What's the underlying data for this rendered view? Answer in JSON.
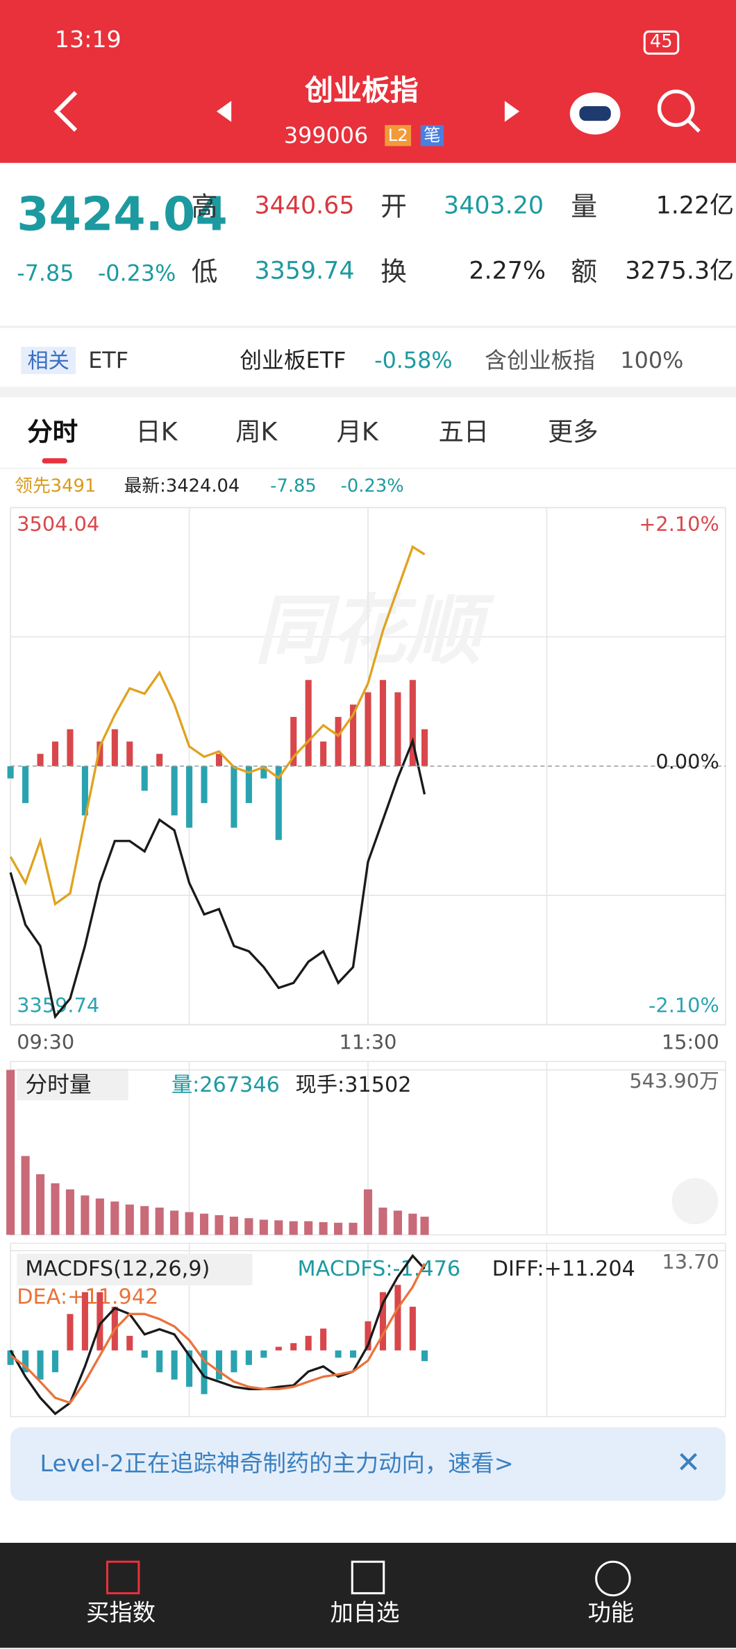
{
  "status_bar": {
    "time": "13:19",
    "battery": "45"
  },
  "header": {
    "title": "创业板指",
    "code": "399006",
    "badges": [
      "L2",
      "笔"
    ]
  },
  "quote": {
    "price": "3424.04",
    "change": "-7.85",
    "change_pct": "-0.23%",
    "fields": [
      {
        "label": "高",
        "value": "3440.65"
      },
      {
        "label": "开",
        "value": "3403.20"
      },
      {
        "label": "量",
        "value": "1.22亿"
      },
      {
        "label": "低",
        "value": "3359.74"
      },
      {
        "label": "换",
        "value": "2.27%"
      },
      {
        "label": "额",
        "value": "3275.3亿"
      }
    ]
  },
  "etf_row": {
    "tag": "相关",
    "label": "ETF",
    "fund": "创业板ETF",
    "fund_change": "-0.58%",
    "holding": "含创业板指",
    "holding_pct": "100%"
  },
  "tabs": [
    "分时",
    "日K",
    "周K",
    "月K",
    "五日",
    "更多"
  ],
  "chart_info": {
    "lead": "领先3491",
    "latest": "最新:3424.04",
    "change": "-7.85",
    "change_pct": "-0.23%"
  },
  "chart_data": [
    {
      "type": "line",
      "watermark": "同花顺",
      "x": [
        0,
        5,
        10,
        15,
        20,
        25,
        30,
        35,
        40,
        45,
        50,
        55,
        60,
        65,
        70,
        75,
        80,
        85,
        90,
        95,
        100,
        105,
        110,
        115,
        120,
        125,
        130,
        135,
        139
      ],
      "xlim": [
        0,
        240
      ],
      "xticks": [
        {
          "value": 0,
          "label": "09:30"
        },
        {
          "value": 120,
          "label": "11:30"
        },
        {
          "value": 240,
          "label": "15:00"
        }
      ],
      "ylim": [
        3359.74,
        3504.04
      ],
      "yticks": [
        3504.04,
        3359.74
      ],
      "y2lim": [
        -2.1,
        2.1
      ],
      "y2ticks": [
        {
          "value": 2.1,
          "label": "+2.10%"
        },
        {
          "value": 0,
          "label": "0.00%"
        },
        {
          "value": -2.1,
          "label": "-2.10%"
        }
      ],
      "up_color": "#d8474b",
      "down_color": "#2aa3b0",
      "series": [
        {
          "type": "bar",
          "axis": "y2",
          "values": [
            -0.1,
            -0.3,
            0.1,
            0.2,
            0.3,
            -0.4,
            0.2,
            0.3,
            0.2,
            -0.2,
            0.1,
            -0.4,
            -0.5,
            -0.3,
            0.1,
            -0.5,
            -0.3,
            -0.1,
            -0.6,
            0.4,
            0.7,
            0.2,
            0.4,
            0.5,
            0.6,
            0.7,
            0.6,
            0.7,
            0.3
          ]
        },
        {
          "type": "line",
          "color": "#e0a21e",
          "values": [
            3406.6,
            3399.3,
            3411.0,
            3393.4,
            3396.4,
            3416.9,
            3437.4,
            3446.2,
            3453.6,
            3452.1,
            3458.0,
            3449.2,
            3437.4,
            3434.5,
            3436.0,
            3431.6,
            3430.1,
            3431.6,
            3428.6,
            3434.5,
            3438.9,
            3443.3,
            3440.4,
            3446.2,
            3455.0,
            3469.7,
            3481.4,
            3493.1,
            3491
          ]
        },
        {
          "type": "line",
          "color": "#1a1a1a",
          "values": [
            3402.2,
            3387.6,
            3381.7,
            3362.0,
            3367.0,
            3381.7,
            3399.3,
            3411.0,
            3411.0,
            3408.1,
            3416.9,
            3414.0,
            3399.3,
            3390.5,
            3392.0,
            3381.7,
            3380.2,
            3375.8,
            3370.0,
            3371.4,
            3377.3,
            3380.2,
            3371.4,
            3375.8,
            3405.2,
            3416.9,
            3428.6,
            3438.9,
            3424.04
          ]
        }
      ]
    },
    {
      "type": "bar",
      "title": "分时量",
      "volume": "量:267346",
      "current": "现手:31502",
      "x": [
        0,
        5,
        10,
        15,
        20,
        25,
        30,
        35,
        40,
        45,
        50,
        55,
        60,
        65,
        70,
        75,
        80,
        85,
        90,
        95,
        100,
        105,
        110,
        115,
        120,
        125,
        130,
        135,
        139
      ],
      "xlim": [
        0,
        240
      ],
      "ylim": [
        0,
        543.9
      ],
      "yticks": [
        {
          "value": 543.9,
          "label": "543.90万"
        }
      ],
      "color": "#c96a78",
      "values": [
        543.9,
        260,
        200,
        170,
        150,
        130,
        120,
        110,
        100,
        95,
        90,
        80,
        75,
        70,
        65,
        60,
        55,
        50,
        48,
        45,
        45,
        42,
        40,
        40,
        150,
        90,
        80,
        70,
        60
      ]
    },
    {
      "type": "macd",
      "title": "MACDFS(12,26,9)",
      "macd_label": "MACDFS:-1.476",
      "diff_label": "DIFF:+11.204",
      "dea_label": "DEA:+11.942",
      "x": [
        0,
        5,
        10,
        15,
        20,
        25,
        30,
        35,
        40,
        45,
        50,
        55,
        60,
        65,
        70,
        75,
        80,
        85,
        90,
        95,
        100,
        105,
        110,
        115,
        120,
        125,
        130,
        135,
        139
      ],
      "xlim": [
        0,
        240
      ],
      "ylim": [
        -9.1,
        13.7
      ],
      "yticks": [
        {
          "value": 13.7,
          "label": "13.70"
        }
      ],
      "up_color": "#d8474b",
      "down_color": "#2aa3b0",
      "series": [
        {
          "type": "bar",
          "values": [
            -2,
            -3,
            -4,
            -3,
            5,
            8,
            8,
            6,
            2,
            -1,
            -3,
            -4,
            -5,
            -6,
            -4,
            -3,
            -2,
            -1,
            0.5,
            1,
            2,
            3,
            -1,
            -1,
            4,
            8,
            9,
            6,
            -1.476
          ]
        },
        {
          "type": "line",
          "color": "#1a1a1a",
          "values": [
            0,
            -3.6,
            -6.5,
            -8.7,
            -7.2,
            -2.2,
            3.6,
            5.8,
            5.0,
            2.2,
            2.9,
            2.2,
            -0.7,
            -3.6,
            -4.3,
            -5.0,
            -5.3,
            -5.3,
            -5.0,
            -4.8,
            -2.9,
            -2.2,
            -3.6,
            -2.9,
            0.7,
            6.5,
            10.1,
            13.0,
            11.204
          ]
        },
        {
          "type": "line",
          "color": "#e9733a",
          "values": [
            -0.7,
            -2.2,
            -4.3,
            -6.5,
            -7.2,
            -4.3,
            -0.7,
            2.9,
            5.0,
            5.0,
            4.3,
            3.3,
            1.4,
            -1.4,
            -2.9,
            -4.3,
            -5.0,
            -5.3,
            -5.3,
            -5.0,
            -4.3,
            -3.6,
            -3.3,
            -2.9,
            -1.4,
            2.2,
            5.8,
            8.7,
            11.942
          ]
        }
      ]
    }
  ],
  "banner": {
    "text": "Level-2正在追踪神奇制药的主力动向，速看>"
  },
  "bottom_nav": [
    "买指数",
    "加自选",
    "功能"
  ]
}
